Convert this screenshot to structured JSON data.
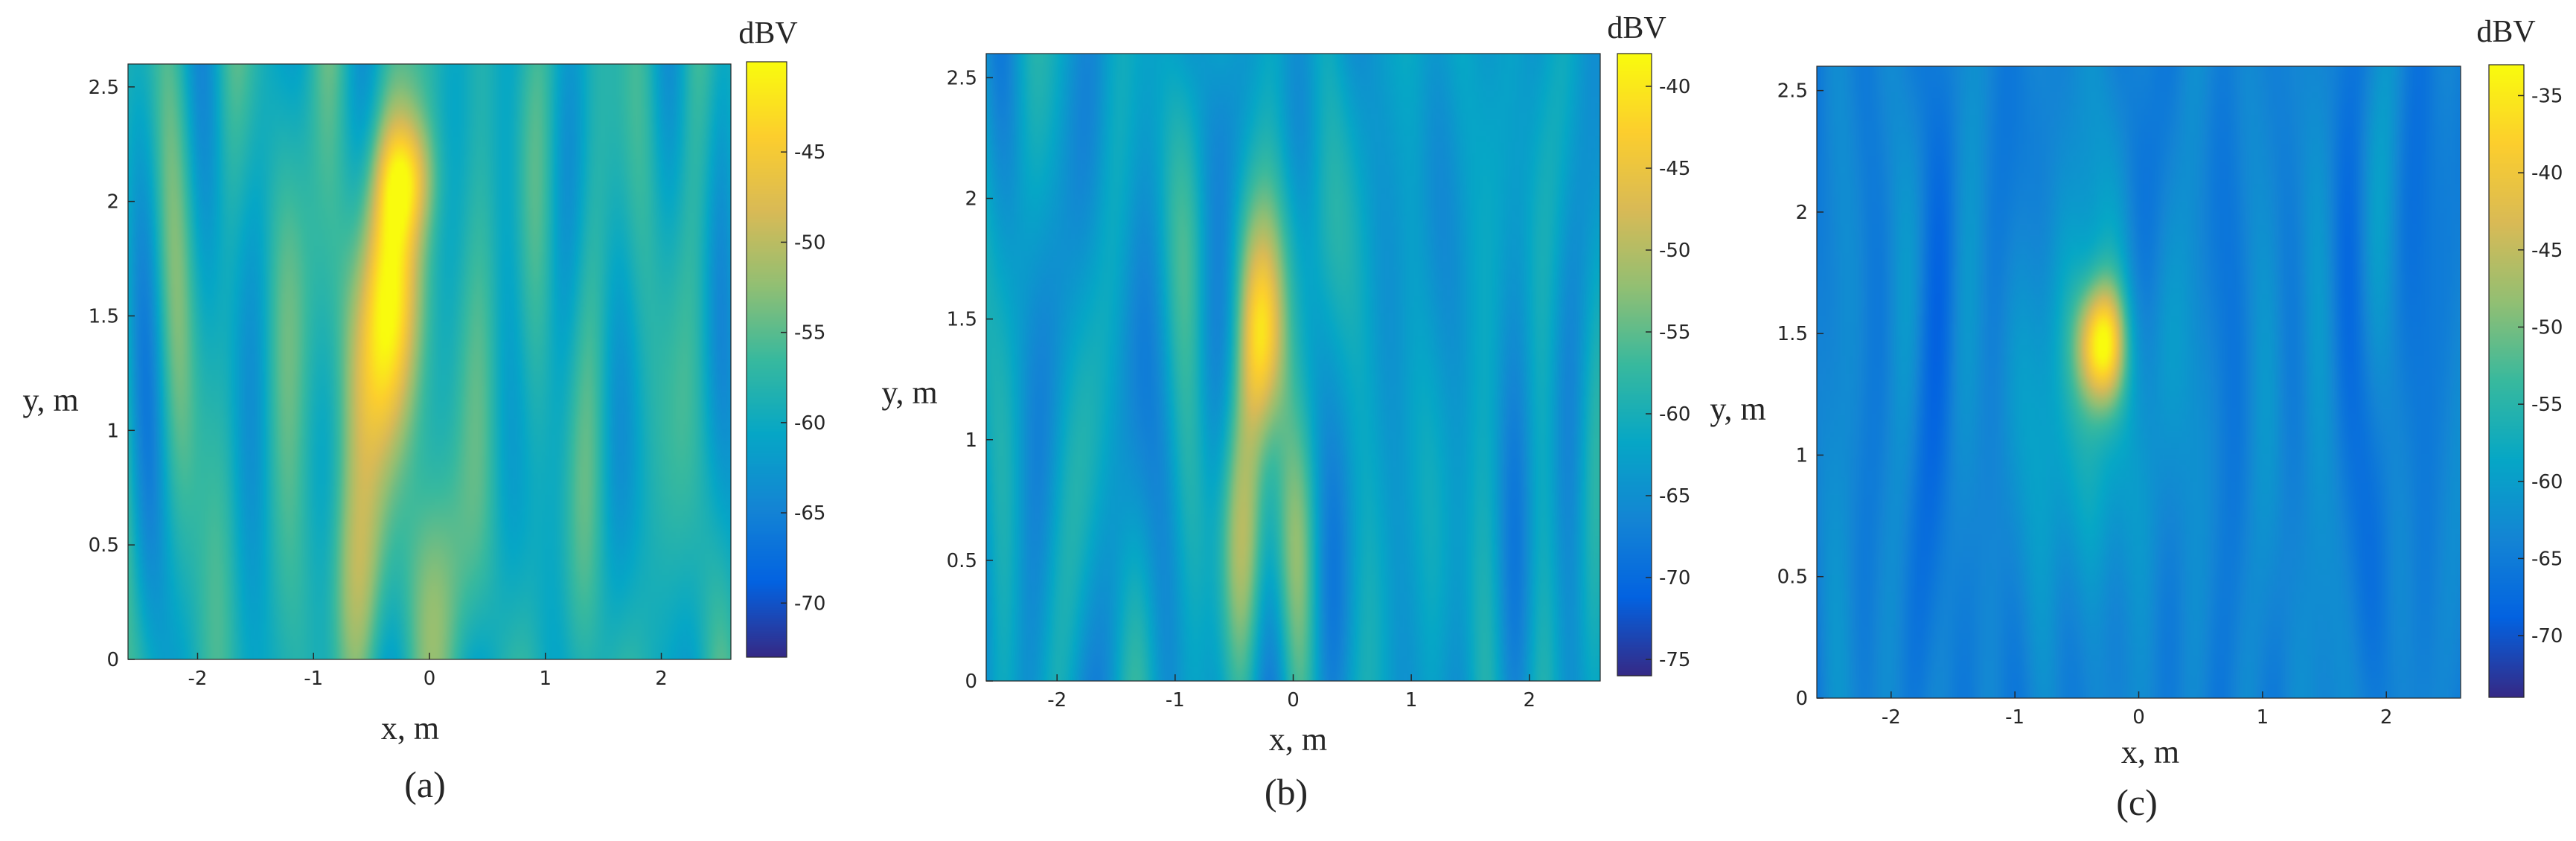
{
  "figure": {
    "colormap": "parula",
    "colors": {
      "parula": [
        "#352a87",
        "#0363e1",
        "#1485d4",
        "#06a7c6",
        "#38b99e",
        "#92bf73",
        "#d9ba56",
        "#fcce2e",
        "#f9fb0e"
      ],
      "axis": "#262626",
      "background": "#ffffff"
    }
  },
  "chart_data": [
    {
      "type": "heatmap",
      "subplot_label": "(a)",
      "xlabel": "x, m",
      "ylabel": "y, m",
      "xlim": [
        -2.6,
        2.6
      ],
      "ylim": [
        0,
        2.6
      ],
      "x_ticks": [
        -2,
        -1,
        0,
        1,
        2
      ],
      "x_tick_labels": [
        "-2",
        "-1",
        "0",
        "1",
        "2"
      ],
      "y_ticks": [
        0,
        0.5,
        1,
        1.5,
        2,
        2.5
      ],
      "y_tick_labels": [
        "0",
        "0.5",
        "1",
        "1.5",
        "2",
        "2.5"
      ],
      "colorbar": {
        "label": "dBV",
        "limits": [
          -73,
          -40
        ],
        "ticks": [
          -45,
          -50,
          -55,
          -60,
          -65,
          -70
        ],
        "tick_labels": [
          "-45",
          "-50",
          "-55",
          "-60",
          "-65",
          "-70"
        ]
      },
      "field_model": {
        "baseline_dBV": -59,
        "noise_amplitude_dB": 4,
        "hotspots": [
          {
            "x": -0.4,
            "y": 1.5,
            "sx": 0.3,
            "sy": 0.5,
            "peak_dB": 17
          },
          {
            "x": -0.2,
            "y": 2.1,
            "sx": 0.18,
            "sy": 0.18,
            "peak_dB": 10
          },
          {
            "x": -0.3,
            "y": 0.35,
            "sx": 0.45,
            "sy": 0.35,
            "peak_dB": 6
          }
        ]
      }
    },
    {
      "type": "heatmap",
      "subplot_label": "(b)",
      "xlabel": "x, m",
      "ylabel": "y, m",
      "xlim": [
        -2.6,
        2.6
      ],
      "ylim": [
        0,
        2.6
      ],
      "x_ticks": [
        -2,
        -1,
        0,
        1,
        2
      ],
      "x_tick_labels": [
        "-2",
        "-1",
        "0",
        "1",
        "2"
      ],
      "y_ticks": [
        0,
        0.5,
        1,
        1.5,
        2,
        2.5
      ],
      "y_tick_labels": [
        "0",
        "0.5",
        "1",
        "1.5",
        "2",
        "2.5"
      ],
      "colorbar": {
        "label": "dBV",
        "limits": [
          -76,
          -38
        ],
        "ticks": [
          -40,
          -45,
          -50,
          -55,
          -60,
          -65,
          -70,
          -75
        ],
        "tick_labels": [
          "-40",
          "-45",
          "-50",
          "-55",
          "-60",
          "-65",
          "-70",
          "-75"
        ]
      },
      "field_model": {
        "baseline_dBV": -63,
        "noise_amplitude_dB": 4,
        "hotspots": [
          {
            "x": -0.25,
            "y": 1.4,
            "sx": 0.13,
            "sy": 0.28,
            "peak_dB": 20
          },
          {
            "x": -0.3,
            "y": 0.6,
            "sx": 0.35,
            "sy": 0.4,
            "peak_dB": 9
          },
          {
            "x": -0.25,
            "y": 1.8,
            "sx": 0.3,
            "sy": 0.3,
            "peak_dB": 7
          }
        ]
      }
    },
    {
      "type": "heatmap",
      "subplot_label": "(c)",
      "xlabel": "x, m",
      "ylabel": "y, m",
      "xlim": [
        -2.6,
        2.6
      ],
      "ylim": [
        0,
        2.6
      ],
      "x_ticks": [
        -2,
        -1,
        0,
        1,
        2
      ],
      "x_tick_labels": [
        "-2",
        "-1",
        "0",
        "1",
        "2"
      ],
      "y_ticks": [
        0,
        0.5,
        1,
        1.5,
        2,
        2.5
      ],
      "y_tick_labels": [
        "0",
        "0.5",
        "1",
        "1.5",
        "2",
        "2.5"
      ],
      "colorbar": {
        "label": "dBV",
        "limits": [
          -74,
          -33
        ],
        "ticks": [
          -35,
          -40,
          -45,
          -50,
          -55,
          -60,
          -65,
          -70
        ],
        "tick_labels": [
          "-35",
          "-40",
          "-45",
          "-50",
          "-55",
          "-60",
          "-65",
          "-70"
        ]
      },
      "field_model": {
        "baseline_dBV": -64,
        "noise_amplitude_dB": 3,
        "hotspots": [
          {
            "x": -0.3,
            "y": 1.45,
            "sx": 0.13,
            "sy": 0.17,
            "peak_dB": 27
          },
          {
            "x": -0.3,
            "y": 1.4,
            "sx": 0.45,
            "sy": 0.4,
            "peak_dB": 7
          },
          {
            "x": -0.3,
            "y": 0.8,
            "sx": 0.3,
            "sy": 0.35,
            "peak_dB": 5
          }
        ]
      }
    }
  ]
}
